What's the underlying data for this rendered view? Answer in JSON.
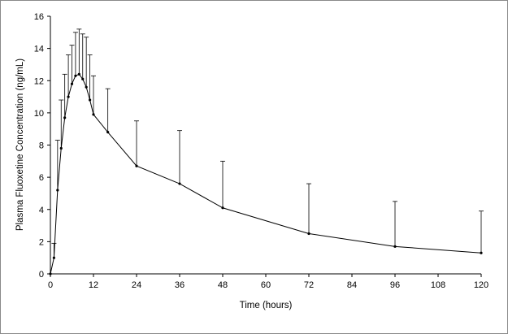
{
  "chart_data": {
    "type": "line",
    "title": "",
    "xlabel": "Time (hours)",
    "ylabel": "Plasma Fluoxetine Concentration (ng/mL)",
    "xlim": [
      0,
      120
    ],
    "ylim": [
      0,
      16
    ],
    "xticks": [
      0,
      12,
      24,
      36,
      48,
      60,
      72,
      84,
      96,
      108,
      120
    ],
    "yticks": [
      0,
      2,
      4,
      6,
      8,
      10,
      12,
      14,
      16
    ],
    "grid": false,
    "series": [
      {
        "x": [
          0,
          1,
          2,
          3,
          4,
          5,
          6,
          7,
          8,
          9,
          10,
          11,
          12,
          16,
          24,
          36,
          48,
          72,
          96,
          120
        ],
        "y": [
          0,
          1.0,
          5.2,
          7.8,
          9.7,
          11.0,
          11.8,
          12.3,
          12.4,
          12.1,
          11.6,
          10.8,
          9.9,
          8.8,
          6.7,
          5.6,
          4.1,
          2.5,
          1.7,
          1.3
        ],
        "error_upper": [
          0,
          1.9,
          8.3,
          10.8,
          12.4,
          13.6,
          14.2,
          15.0,
          15.2,
          14.9,
          14.7,
          13.6,
          12.3,
          11.5,
          9.5,
          8.9,
          7.0,
          5.6,
          4.5,
          3.9
        ]
      }
    ]
  }
}
